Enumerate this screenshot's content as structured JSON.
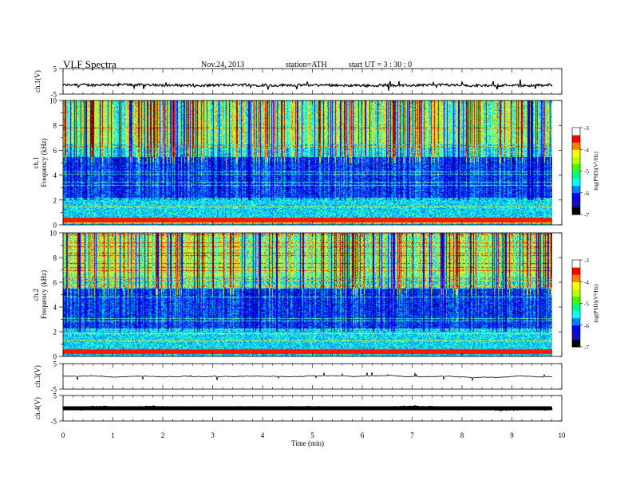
{
  "header": {
    "title": "VLF  Spectra",
    "date": "Nov.24, 2013",
    "station": "station=ATH",
    "start": "start  UT  =   3  : 30 : 0"
  },
  "chart_data": [
    {
      "type": "line",
      "name": "ch1-waveform",
      "ylabel": "ch.1(V)",
      "ylim": [
        -5,
        5
      ],
      "yticks": [
        "5",
        "-5"
      ],
      "xlim": [
        0,
        10
      ],
      "x_end": 9.8,
      "description_values": {
        "baseline": -1.5,
        "amplitude": 1.0
      }
    },
    {
      "type": "heatmap",
      "name": "ch1-spectrogram",
      "ylabel": "ch.1\nFrequency (kHz)",
      "ylabel_lines": [
        "ch.1",
        "Frequency  (kHz)"
      ],
      "ylim": [
        0,
        10
      ],
      "yticks": [
        "0",
        "2",
        "4",
        "6",
        "8",
        "10"
      ],
      "xlim": [
        0,
        10
      ],
      "x_end": 9.8,
      "colorbar": {
        "label": "log(PSD)(V²/Hz)",
        "min": -7,
        "max": -3,
        "ticks": [
          "-3",
          "-4",
          "-5",
          "-6",
          "-7"
        ]
      }
    },
    {
      "type": "heatmap",
      "name": "ch2-spectrogram",
      "ylabel_lines": [
        "ch.2",
        "Frequency  (kHz)"
      ],
      "ylim": [
        0,
        10
      ],
      "yticks": [
        "0",
        "2",
        "4",
        "6",
        "8",
        "10"
      ],
      "xlim": [
        0,
        10
      ],
      "x_end": 9.8,
      "colorbar": {
        "label": "log(PSD)(V²/Hz)",
        "min": -7,
        "max": -3,
        "ticks": [
          "-3",
          "-4",
          "-5",
          "-6",
          "-7"
        ]
      }
    },
    {
      "type": "line",
      "name": "ch3-waveform",
      "ylabel": "ch.3(V)",
      "ylim": [
        -5,
        5
      ],
      "yticks": [
        "5",
        "-5"
      ],
      "xlim": [
        0,
        10
      ],
      "x_end": 9.8,
      "description_values": {
        "baseline": 0,
        "amplitude": 0.1
      }
    },
    {
      "type": "line",
      "name": "ch4-waveform",
      "ylabel": "ch.4(V)",
      "ylim": [
        -5,
        5
      ],
      "yticks": [
        "5",
        "-5"
      ],
      "xlim": [
        0,
        10
      ],
      "x_end": 9.8,
      "description_values": {
        "baseline": 0,
        "amplitude": 0.3
      }
    }
  ],
  "xaxis": {
    "label": "Time  (min)",
    "ticks": [
      "0",
      "1",
      "2",
      "3",
      "4",
      "5",
      "6",
      "7",
      "8",
      "9",
      "10"
    ]
  },
  "colors": {
    "jet": [
      "#00007f",
      "#0000ff",
      "#007fff",
      "#00ffff",
      "#7fff7f",
      "#ffff00",
      "#ff7f00",
      "#ff0000",
      "#7f0000"
    ],
    "colorbar": [
      "#000000",
      "#1010b0",
      "#0000ff",
      "#0080ff",
      "#00ffff",
      "#00ff80",
      "#40ff00",
      "#c0ff00",
      "#ffff00",
      "#ff8000",
      "#ff0000",
      "#ffffff"
    ]
  }
}
